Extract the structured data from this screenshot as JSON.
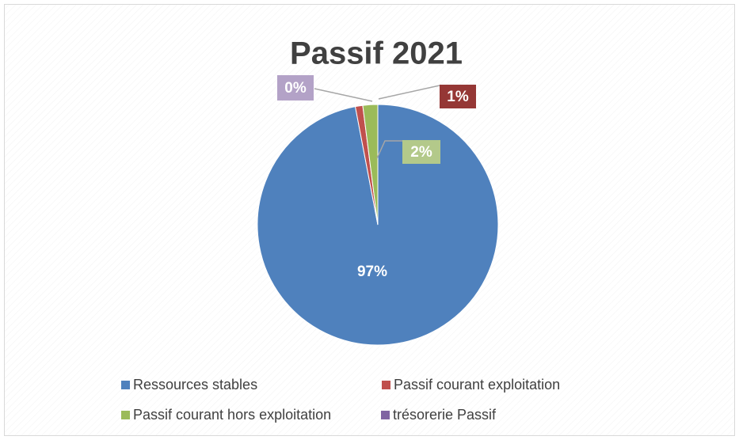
{
  "chart_data": {
    "type": "pie",
    "title": "Passif 2021",
    "labels": [
      "Ressources stables",
      "Passif courant exploitation",
      "Passif courant hors exploitation",
      "trésorerie Passif"
    ],
    "values": [
      97,
      1,
      2,
      0
    ],
    "value_labels": [
      "97%",
      "1%",
      "2%",
      "0%"
    ],
    "colors": [
      "#4f81bd",
      "#c0504d",
      "#9bbb59",
      "#8064a2"
    ],
    "label_box_colors": [
      null,
      "#953735",
      "#b3c98a",
      "#b3a2c7"
    ],
    "legend": "bottom"
  }
}
